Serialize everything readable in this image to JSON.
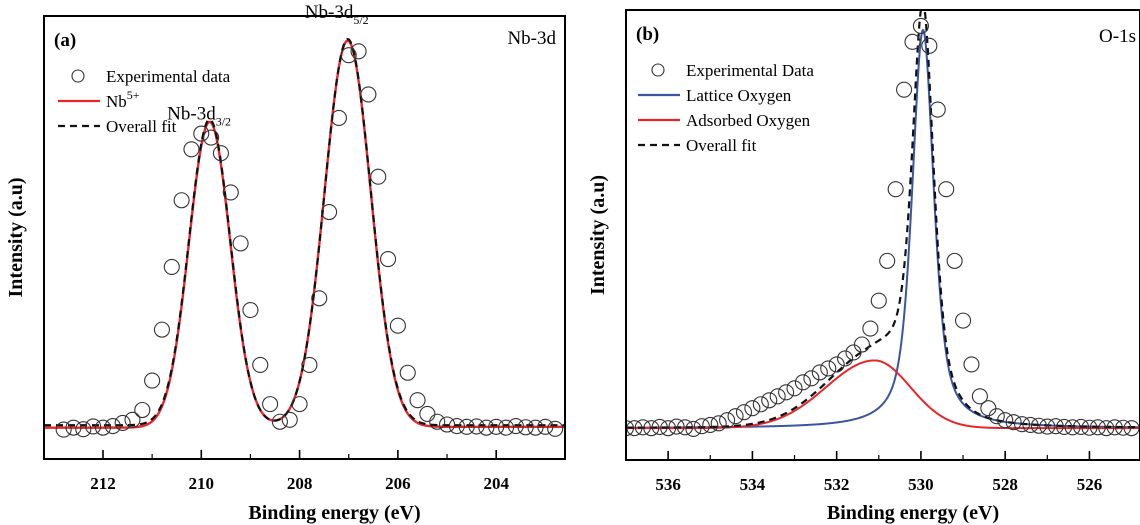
{
  "chart_data": [
    {
      "type": "line",
      "panel_label": "(a)",
      "corner_label": "Nb-3d",
      "xlabel": "Binding energy (eV)",
      "ylabel": "Intensity (a.u)",
      "xlim": [
        213.2,
        202.6
      ],
      "ylim": [
        -0.08,
        1.05
      ],
      "x_ticks": [
        212,
        210,
        208,
        206,
        204
      ],
      "grid": false,
      "legend_position": "top-left",
      "legend": [
        {
          "label": "Experimental data",
          "sup": "",
          "style": "open-circle",
          "color": "#333333"
        },
        {
          "label": "Nb",
          "sup": "5+",
          "style": "solid",
          "color": "#e8262a"
        },
        {
          "label": "Overall fit",
          "sup": "",
          "style": "dashed",
          "color": "#111111"
        }
      ],
      "annotations": [
        {
          "main": "Nb-3d",
          "sub": "3/2",
          "x": 209.8,
          "y": 0.76
        },
        {
          "main": "Nb-3d",
          "sub": "5/2",
          "x": 207.0,
          "y": 1.02
        }
      ],
      "series": [
        {
          "name": "Experimental data",
          "kind": "circles",
          "color": "#333333",
          "x": [
            212.8,
            212.6,
            212.4,
            212.2,
            212.0,
            211.8,
            211.6,
            211.4,
            211.2,
            211.0,
            210.8,
            210.6,
            210.4,
            210.2,
            210.0,
            209.8,
            209.6,
            209.4,
            209.2,
            209.0,
            208.8,
            208.6,
            208.4,
            208.2,
            208.0,
            207.8,
            207.6,
            207.4,
            207.2,
            207.0,
            206.8,
            206.6,
            206.4,
            206.2,
            206.0,
            205.8,
            205.6,
            205.4,
            205.2,
            205.0,
            204.8,
            204.6,
            204.4,
            204.2,
            204.0,
            203.8,
            203.6,
            203.4,
            203.2,
            203.0,
            202.8
          ],
          "y": [
            -0.005,
            0.0,
            -0.004,
            0.003,
            0.0,
            0.004,
            0.012,
            0.02,
            0.045,
            0.12,
            0.25,
            0.41,
            0.58,
            0.71,
            0.75,
            0.74,
            0.7,
            0.6,
            0.47,
            0.3,
            0.16,
            0.06,
            0.015,
            0.02,
            0.06,
            0.16,
            0.33,
            0.55,
            0.79,
            0.95,
            0.96,
            0.85,
            0.64,
            0.43,
            0.26,
            0.14,
            0.07,
            0.035,
            0.015,
            0.008,
            0.004,
            0.002,
            0.003,
            0.0,
            0.002,
            0.0,
            0.004,
            0.001,
            0.0,
            0.002,
            -0.003
          ]
        },
        {
          "name": "Nb",
          "kind": "line",
          "color": "#e8262a",
          "width": 2.4,
          "peaks": [
            {
              "center": 209.83,
              "height": 0.78,
              "sigma": 0.42
            },
            {
              "center": 207.02,
              "height": 0.985,
              "sigma": 0.47
            }
          ],
          "baseline": [
            [
              213.2,
              0.0
            ],
            [
              209.3,
              0.0
            ],
            [
              209.0,
              0.006
            ],
            [
              207.4,
              0.006
            ],
            [
              207.0,
              0.002
            ],
            [
              202.6,
              0.002
            ]
          ]
        },
        {
          "name": "Overall fit",
          "kind": "line",
          "color": "#111111",
          "dash": "7,5",
          "width": 2.2,
          "peaks": [
            {
              "center": 209.83,
              "height": 0.78,
              "sigma": 0.42
            },
            {
              "center": 207.02,
              "height": 0.985,
              "sigma": 0.47
            }
          ],
          "offset": 0.006
        }
      ]
    },
    {
      "type": "line",
      "panel_label": "(b)",
      "corner_label": "O-1s",
      "xlabel": "Binding energy (eV)",
      "ylabel": "Intensity (a.u)",
      "xlim": [
        537.0,
        524.8
      ],
      "ylim": [
        -0.08,
        1.05
      ],
      "x_ticks": [
        536,
        534,
        532,
        530,
        528,
        526
      ],
      "grid": false,
      "legend_position": "top-left",
      "legend": [
        {
          "label": "Experimental Data",
          "sup": "",
          "style": "open-circle",
          "color": "#333333"
        },
        {
          "label": "Lattice Oxygen",
          "sup": "",
          "style": "solid",
          "color": "#3a55a4"
        },
        {
          "label": "Adsorbed Oxygen",
          "sup": "",
          "style": "solid",
          "color": "#e8262a"
        },
        {
          "label": "Overall fit",
          "sup": "",
          "style": "dashed",
          "color": "#111111"
        }
      ],
      "annotations": [],
      "series": [
        {
          "name": "Experimental Data",
          "kind": "circles",
          "color": "#333333",
          "x": [
            537.0,
            536.8,
            536.6,
            536.4,
            536.2,
            536.0,
            535.8,
            535.6,
            535.4,
            535.2,
            535.0,
            534.8,
            534.6,
            534.4,
            534.2,
            534.0,
            533.8,
            533.6,
            533.4,
            533.2,
            533.0,
            532.8,
            532.6,
            532.4,
            532.2,
            532.0,
            531.8,
            531.6,
            531.4,
            531.2,
            531.0,
            530.8,
            530.6,
            530.4,
            530.2,
            530.0,
            529.8,
            529.6,
            529.4,
            529.2,
            529.0,
            528.8,
            528.6,
            528.4,
            528.2,
            528.0,
            527.8,
            527.6,
            527.4,
            527.2,
            527.0,
            526.8,
            526.6,
            526.4,
            526.2,
            526.0,
            525.8,
            525.6,
            525.4,
            525.2,
            525.0
          ],
          "y": [
            0.0,
            0.0,
            0.002,
            0.0,
            0.003,
            0.0,
            0.004,
            0.002,
            -0.002,
            0.005,
            0.008,
            0.012,
            0.02,
            0.03,
            0.04,
            0.05,
            0.06,
            0.07,
            0.08,
            0.09,
            0.1,
            0.115,
            0.125,
            0.14,
            0.15,
            0.16,
            0.175,
            0.19,
            0.21,
            0.25,
            0.32,
            0.42,
            0.6,
            0.85,
            0.97,
            1.01,
            0.96,
            0.8,
            0.6,
            0.42,
            0.27,
            0.16,
            0.08,
            0.05,
            0.03,
            0.02,
            0.015,
            0.01,
            0.008,
            0.006,
            0.004,
            0.005,
            0.003,
            0.002,
            0.003,
            0.001,
            0.002,
            0.0,
            0.002,
            0.001,
            0.0
          ]
        },
        {
          "name": "Lattice Oxygen",
          "kind": "voigt",
          "color": "#3a55a4",
          "width": 2.0,
          "center": 529.95,
          "height": 1.0,
          "gamma": 0.32,
          "sigma": 0.25,
          "baseline": 0.0
        },
        {
          "name": "Adsorbed Oxygen",
          "kind": "asym",
          "color": "#e8262a",
          "width": 2.0,
          "center": 531.1,
          "height": 0.17,
          "sigma_left": 1.15,
          "sigma_right": 0.85,
          "baseline": 0.0
        },
        {
          "name": "Overall fit",
          "kind": "sum",
          "color": "#111111",
          "dash": "7,5",
          "width": 2.2
        }
      ]
    }
  ]
}
